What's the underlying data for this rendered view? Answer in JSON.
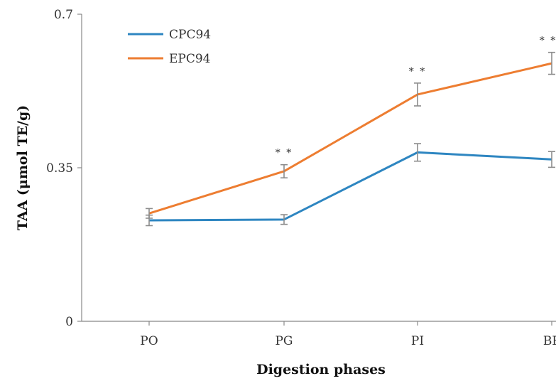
{
  "chart_data": {
    "type": "line",
    "categories": [
      "PO",
      "PG",
      "PI",
      "BF"
    ],
    "series": [
      {
        "name": "CPC94",
        "color": "#2E86C1",
        "values": [
          0.23,
          0.232,
          0.385,
          0.369
        ],
        "errors": [
          0.012,
          0.011,
          0.02,
          0.018
        ]
      },
      {
        "name": "EPC94",
        "color": "#ED7D31",
        "values": [
          0.246,
          0.342,
          0.517,
          0.588
        ],
        "errors": [
          0.011,
          0.015,
          0.026,
          0.025
        ]
      }
    ],
    "annotations": [
      {
        "category": "PG",
        "text": "* *"
      },
      {
        "category": "PI",
        "text": "* *"
      },
      {
        "category": "BF",
        "text": "* *"
      }
    ],
    "xlabel": "Digestion phases",
    "ylabel": "TAA (μmol TE/g)",
    "ylim": [
      0,
      0.7
    ],
    "yticks": [
      {
        "value": 0,
        "label": "0"
      },
      {
        "value": 0.35,
        "label": "0.35"
      },
      {
        "value": 0.7,
        "label": "0.7"
      }
    ],
    "legend_position": "top-left",
    "grid": false,
    "error_bar_color": "#8C8C8C",
    "axis_color": "#888888"
  }
}
